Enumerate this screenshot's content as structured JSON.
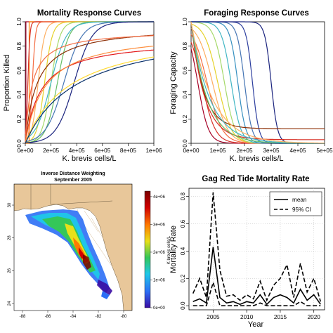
{
  "chart_data": [
    {
      "type": "line",
      "panel": "mortality",
      "title": "Mortality Response Curves",
      "xlabel": "K. brevis cells/L",
      "ylabel": "Proportion Killed",
      "xlim": [
        0,
        1000000
      ],
      "ylim": [
        0,
        1
      ],
      "xticks": [
        0,
        200000,
        400000,
        600000,
        800000,
        1000000
      ],
      "xtick_labels": [
        "0e+00",
        "2e+05",
        "4e+05",
        "6e+05",
        "8e+05",
        "1e+06"
      ],
      "yticks": [
        0.0,
        0.2,
        0.4,
        0.6,
        0.8,
        1.0
      ],
      "ytick_labels": [
        "0.0",
        "0.2",
        "0.4",
        "0.6",
        "0.8",
        "1.0"
      ],
      "series": [
        {
          "kind": "step",
          "threshold": 5000,
          "color": "#a50026"
        },
        {
          "kind": "step",
          "threshold": 30000,
          "color": "#ff7f00"
        },
        {
          "kind": "logistic",
          "mid": 20000,
          "slope": 8000,
          "max": 1.0,
          "color": "#d73027"
        },
        {
          "kind": "logistic",
          "mid": 55000,
          "slope": 12000,
          "max": 1.0,
          "color": "#f46d43"
        },
        {
          "kind": "logistic",
          "mid": 100000,
          "slope": 25000,
          "max": 1.0,
          "color": "#fdae61"
        },
        {
          "kind": "logistic",
          "mid": 150000,
          "slope": 30000,
          "max": 1.0,
          "color": "#e6d22b"
        },
        {
          "kind": "logistic",
          "mid": 200000,
          "slope": 35000,
          "max": 1.0,
          "color": "#a6d96a"
        },
        {
          "kind": "logistic",
          "mid": 250000,
          "slope": 45000,
          "max": 1.0,
          "color": "#66bd63"
        },
        {
          "kind": "logistic",
          "mid": 200000,
          "slope": 60000,
          "max": 1.0,
          "color": "#41b6c4"
        },
        {
          "kind": "logistic",
          "mid": 300000,
          "slope": 70000,
          "max": 1.0,
          "color": "#4575b4"
        },
        {
          "kind": "logistic",
          "mid": 380000,
          "slope": 70000,
          "max": 1.0,
          "color": "#1a237e"
        },
        {
          "kind": "sat",
          "half": 90000,
          "max": 0.97,
          "color": "#8c2d04"
        },
        {
          "kind": "sat",
          "half": 50000,
          "max": 0.93,
          "color": "#f46d43"
        },
        {
          "kind": "sat",
          "half": 120000,
          "max": 0.86,
          "color": "#e31a1c"
        },
        {
          "kind": "sat",
          "half": 150000,
          "max": 0.92,
          "color": "#fd8d3c"
        },
        {
          "kind": "sat",
          "half": 350000,
          "max": 0.96,
          "color": "#ffd92f"
        },
        {
          "kind": "sat",
          "half": 400000,
          "max": 0.97,
          "color": "#08306b"
        }
      ]
    },
    {
      "type": "line",
      "panel": "foraging",
      "title": "Foraging Response Curves",
      "xlabel": "K. brevis cells/L",
      "ylabel": "Foraging Capacity",
      "xlim": [
        0,
        500000
      ],
      "ylim": [
        0,
        1
      ],
      "xticks": [
        0,
        100000,
        200000,
        300000,
        400000,
        500000
      ],
      "xtick_labels": [
        "0e+00",
        "1e+05",
        "2e+05",
        "3e+05",
        "4e+05",
        "5e+05"
      ],
      "yticks": [
        0.0,
        0.2,
        0.4,
        0.6,
        0.8,
        1.0
      ],
      "ytick_labels": [
        "0.0",
        "0.2",
        "0.4",
        "0.6",
        "0.8",
        "1.0"
      ],
      "series": [
        {
          "kind": "rev",
          "mid": 25000,
          "slope": 20000,
          "color": "#a50026"
        },
        {
          "kind": "rev",
          "mid": 40000,
          "slope": 25000,
          "color": "#d73027"
        },
        {
          "kind": "rev",
          "mid": 60000,
          "slope": 28000,
          "color": "#f46d43"
        },
        {
          "kind": "rev",
          "mid": 80000,
          "slope": 28000,
          "color": "#fdae61"
        },
        {
          "kind": "rev",
          "mid": 100000,
          "slope": 25000,
          "color": "#e6d22b"
        },
        {
          "kind": "rev",
          "mid": 125000,
          "slope": 20000,
          "color": "#a6d96a"
        },
        {
          "kind": "rev",
          "mid": 150000,
          "slope": 18000,
          "color": "#41b6c4"
        },
        {
          "kind": "rev",
          "mid": 175000,
          "slope": 15000,
          "color": "#3690c0"
        },
        {
          "kind": "rev",
          "mid": 200000,
          "slope": 14000,
          "color": "#4575b4"
        },
        {
          "kind": "rev",
          "mid": 230000,
          "slope": 12000,
          "color": "#2c3e9e"
        },
        {
          "kind": "rev",
          "mid": 300000,
          "slope": 12000,
          "color": "#1a237e"
        },
        {
          "kind": "exp",
          "k": 45000,
          "floor": 0.12,
          "color": "#8c2d04"
        },
        {
          "kind": "exp",
          "k": 50000,
          "floor": 0.03,
          "color": "#d73027"
        },
        {
          "kind": "exp",
          "k": 60000,
          "floor": 0.0,
          "color": "#66bd63"
        },
        {
          "kind": "exp",
          "k": 70000,
          "floor": 0.0,
          "color": "#41b6c4"
        },
        {
          "kind": "exp",
          "k": 80000,
          "floor": 0.0,
          "color": "#fdae61"
        }
      ]
    },
    {
      "type": "heatmap",
      "panel": "map",
      "title": "Inverse Distance Weighting",
      "subtitle": "September 2005",
      "colorbar_label": "K brevis cells/L",
      "colorbar_ticks": [
        "0e+00",
        "1e+06",
        "2e+06",
        "3e+06",
        "4e+06"
      ],
      "colorbar_values": [
        0,
        1000000,
        2000000,
        3000000,
        4000000
      ],
      "colorscale": [
        "#3a0ca3",
        "#2c6ff5",
        "#1fc8e8",
        "#34c759",
        "#e8e01a",
        "#ff7a00",
        "#d00000",
        "#7a0000"
      ],
      "lon_ticks": [
        "-88",
        "-86",
        "-84",
        "-82",
        "-80"
      ],
      "lat_ticks": [
        "24",
        "26",
        "28",
        "30"
      ],
      "land_color": "#e8c79a",
      "water_color": "#ffffff"
    },
    {
      "type": "line",
      "panel": "gag",
      "title": "Gag Red Tide Mortality Rate",
      "xlabel": "Year",
      "ylabel": "Mortality Rate",
      "xlim": [
        2001.4,
        2021.6
      ],
      "ylim": [
        -0.03,
        0.86
      ],
      "xticks": [
        2005,
        2010,
        2015,
        2020
      ],
      "yticks": [
        0.0,
        0.2,
        0.4,
        0.6,
        0.8
      ],
      "ytick_labels": [
        "0.0",
        "0.2",
        "0.4",
        "0.6",
        "0.8"
      ],
      "x": [
        2002,
        2003,
        2004,
        2005,
        2006,
        2007,
        2008,
        2009,
        2010,
        2011,
        2012,
        2013,
        2014,
        2015,
        2016,
        2017,
        2018,
        2019,
        2020,
        2021
      ],
      "series": [
        {
          "name": "mean",
          "dash": "",
          "values": [
            0.03,
            0.05,
            0.02,
            0.43,
            0.06,
            0.02,
            0.03,
            0.01,
            0.03,
            0.02,
            0.08,
            0.01,
            0.06,
            0.08,
            0.06,
            0.02,
            0.12,
            0.04,
            0.08,
            0.01
          ]
        },
        {
          "name": "95% CI",
          "dash": "6,3",
          "values": [
            0.09,
            0.2,
            0.06,
            0.83,
            0.26,
            0.07,
            0.08,
            0.04,
            0.08,
            0.05,
            0.18,
            0.04,
            0.15,
            0.2,
            0.3,
            0.06,
            0.31,
            0.1,
            0.2,
            0.03
          ]
        },
        {
          "name": "",
          "dash": "6,3",
          "values": [
            0.0,
            0.0,
            0.0,
            0.17,
            0.0,
            0.0,
            0.0,
            0.0,
            0.0,
            0.0,
            0.02,
            0.0,
            0.0,
            0.0,
            0.0,
            0.0,
            0.03,
            0.0,
            0.0,
            0.0
          ]
        }
      ],
      "legend": [
        "mean",
        "95% CI"
      ],
      "legend_position": "top-right"
    }
  ]
}
